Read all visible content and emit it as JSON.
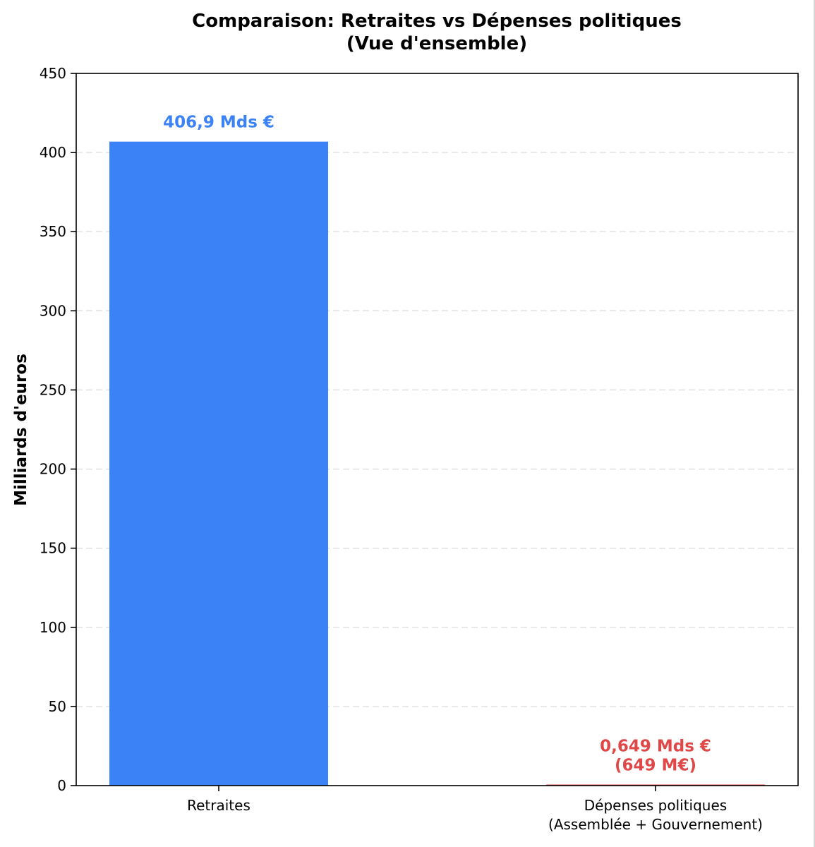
{
  "chart_data": {
    "type": "bar",
    "title_lines": [
      "Comparaison: Retraites vs Dépenses politiques",
      "(Vue d'ensemble)"
    ],
    "xlabel": "",
    "ylabel": "Milliards d'euros",
    "ylim": [
      0,
      450
    ],
    "yticks": [
      "0",
      "50",
      "100",
      "150",
      "200",
      "250",
      "300",
      "350",
      "400",
      "450"
    ],
    "grid": "y-dashed",
    "categories": [
      {
        "label_lines": [
          "Retraites"
        ],
        "value": 406.9,
        "color": "#3b82f6",
        "data_label_lines": [
          "406,9 Mds €"
        ]
      },
      {
        "label_lines": [
          "Dépenses politiques",
          "(Assemblée + Gouvernement)"
        ],
        "value": 0.649,
        "color": "#e04848",
        "data_label_lines": [
          "0,649 Mds €",
          "(649 M€)"
        ]
      }
    ]
  }
}
